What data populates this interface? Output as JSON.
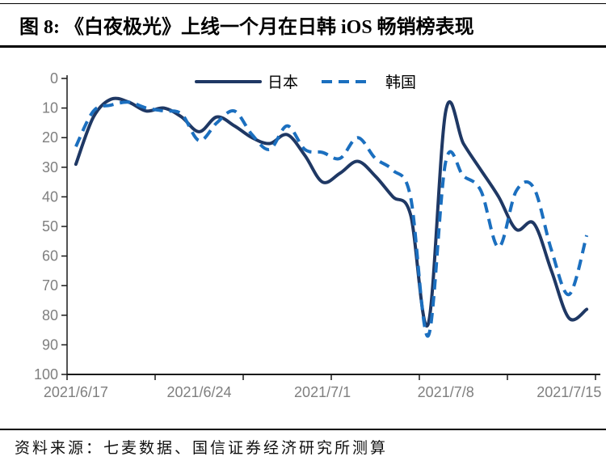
{
  "title": "图 8: 《白夜极光》上线一个月在日韩 iOS 畅销榜表现",
  "source": "资料来源：七麦数据、国信证券经济研究所测算",
  "colors": {
    "japan_line": "#1f3864",
    "korea_line": "#1b6fbf",
    "axis": "#1a1a1a",
    "tick_label": "#7f7f7f",
    "rule": "#000000",
    "background": "#ffffff"
  },
  "chart_data": {
    "type": "line",
    "title": "",
    "xlabel": "",
    "ylabel": "",
    "y_axis_reversed": true,
    "ylim": [
      0,
      100
    ],
    "y_ticks": [
      0,
      10,
      20,
      30,
      40,
      50,
      60,
      70,
      80,
      90,
      100
    ],
    "x_tick_labels": [
      "2021/6/17",
      "2021/6/24",
      "2021/7/1",
      "2021/7/8",
      "2021/7/15"
    ],
    "x_tick_days": [
      0,
      7,
      14,
      21,
      28
    ],
    "x_boundary_tick_interval_days": 5,
    "n_days": 30,
    "grid": false,
    "legend_position": "top-center",
    "series": [
      {
        "name": "日本",
        "style": "solid",
        "color": "#1f3864",
        "stroke_width": 4,
        "values": [
          29,
          13,
          7,
          8,
          11,
          10,
          13,
          18,
          13,
          16,
          20,
          22,
          19,
          26,
          35,
          32,
          28,
          33,
          40,
          46,
          83,
          11,
          22,
          31,
          40,
          51,
          49,
          65,
          81,
          78
        ]
      },
      {
        "name": "韩国",
        "style": "dashed",
        "dash": "13 8",
        "color": "#1b6fbf",
        "stroke_width": 4,
        "values": [
          23,
          11,
          9,
          8,
          10,
          11,
          12,
          21,
          15,
          11,
          19,
          24,
          16,
          24,
          25,
          27,
          20,
          27,
          31,
          40,
          87,
          28,
          33,
          38,
          57,
          38,
          37,
          58,
          73,
          53
        ]
      }
    ]
  }
}
